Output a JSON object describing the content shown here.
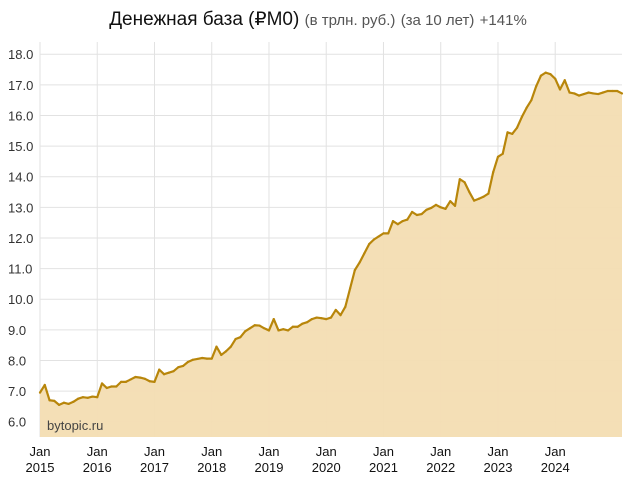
{
  "title": {
    "main": "Денежная база (₽M0)",
    "unit": "(в трлн. руб.)",
    "period": "(за 10 лет)",
    "change": "+141%"
  },
  "watermark": "bytopic.ru",
  "colors": {
    "line": "#b8860b",
    "fill": "#f3ddb2",
    "grid": "#e2e2e2"
  },
  "chart_data": {
    "type": "area",
    "title": "Денежная база (₽M0) (в трлн. руб.) (за 10 лет) +141%",
    "xlabel": "",
    "ylabel": "",
    "x_start": "2015-01",
    "x_step": "month",
    "ylim": [
      5.5,
      18.4
    ],
    "grid": true,
    "y_ticks": [
      "6.0",
      "7.0",
      "8.0",
      "9.0",
      "10.0",
      "11.0",
      "12.0",
      "13.0",
      "14.0",
      "15.0",
      "16.0",
      "17.0",
      "18.0"
    ],
    "x_ticks": [
      {
        "month": "Jan",
        "year": "2015"
      },
      {
        "month": "Jan",
        "year": "2016"
      },
      {
        "month": "Jan",
        "year": "2017"
      },
      {
        "month": "Jan",
        "year": "2018"
      },
      {
        "month": "Jan",
        "year": "2019"
      },
      {
        "month": "Jan",
        "year": "2020"
      },
      {
        "month": "Jan",
        "year": "2021"
      },
      {
        "month": "Jan",
        "year": "2022"
      },
      {
        "month": "Jan",
        "year": "2023"
      },
      {
        "month": "Jan",
        "year": "2024"
      }
    ],
    "series": [
      {
        "values": [
          6.95,
          7.2,
          6.7,
          6.68,
          6.55,
          6.62,
          6.58,
          6.65,
          6.75,
          6.8,
          6.78,
          6.82,
          6.8,
          7.25,
          7.1,
          7.15,
          7.15,
          7.3,
          7.3,
          7.38,
          7.46,
          7.44,
          7.4,
          7.32,
          7.3,
          7.7,
          7.55,
          7.6,
          7.65,
          7.78,
          7.82,
          7.95,
          8.02,
          8.05,
          8.08,
          8.06,
          8.06,
          8.45,
          8.18,
          8.3,
          8.45,
          8.7,
          8.76,
          8.95,
          9.05,
          9.15,
          9.14,
          9.05,
          8.98,
          9.35,
          8.98,
          9.02,
          8.98,
          9.1,
          9.1,
          9.2,
          9.25,
          9.35,
          9.4,
          9.38,
          9.35,
          9.4,
          9.65,
          9.48,
          9.75,
          10.35,
          10.95,
          11.2,
          11.5,
          11.8,
          11.95,
          12.05,
          12.15,
          12.15,
          12.55,
          12.45,
          12.55,
          12.6,
          12.85,
          12.75,
          12.78,
          12.92,
          12.98,
          13.08,
          13.0,
          12.95,
          13.2,
          13.05,
          13.92,
          13.82,
          13.5,
          13.22,
          13.28,
          13.35,
          13.45,
          14.15,
          14.65,
          14.75,
          15.45,
          15.4,
          15.6,
          15.95,
          16.25,
          16.5,
          16.95,
          17.3,
          17.4,
          17.35,
          17.2,
          16.85,
          17.15,
          16.75,
          16.72,
          16.65,
          16.7,
          16.75,
          16.72,
          16.7,
          16.75,
          16.8,
          16.8,
          16.8,
          16.72
        ]
      }
    ]
  }
}
